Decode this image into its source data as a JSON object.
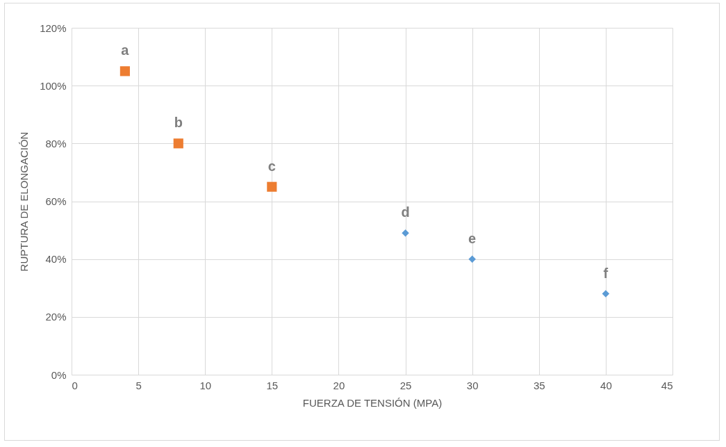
{
  "chart_data": {
    "type": "scatter",
    "xlabel": "FUERZA DE TENSIÓN (MPA)",
    "ylabel": "RUPTURA DE ELONGACIÓN",
    "series": [
      {
        "color": "#ed7d31",
        "marker": "square",
        "x": [
          4,
          8,
          15
        ],
        "values": [
          105,
          80,
          65
        ]
      },
      {
        "color": "#5b9bd5",
        "marker": "diamond",
        "x": [
          25,
          30,
          40
        ],
        "values": [
          49,
          40,
          28
        ]
      }
    ],
    "xlim": [
      0,
      45
    ],
    "xticks": [
      0,
      5,
      10,
      15,
      20,
      25,
      30,
      35,
      40,
      45
    ],
    "ylim": [
      0,
      120
    ],
    "yticks": [
      {
        "value": 0,
        "label": "0%"
      },
      {
        "value": 20,
        "label": "20%"
      },
      {
        "value": 40,
        "label": "40%"
      },
      {
        "value": 60,
        "label": "60%"
      },
      {
        "value": 80,
        "label": "80%"
      },
      {
        "value": 100,
        "label": "100%"
      },
      {
        "value": 120,
        "label": "120%"
      }
    ],
    "annotations": [
      {
        "text": "a",
        "x": 4,
        "y": 105
      },
      {
        "text": "b",
        "x": 8,
        "y": 80
      },
      {
        "text": "c",
        "x": 15,
        "y": 65
      },
      {
        "text": "d",
        "x": 25,
        "y": 49
      },
      {
        "text": "e",
        "x": 30,
        "y": 40
      },
      {
        "text": "f",
        "x": 40,
        "y": 28
      }
    ],
    "grid": true
  }
}
